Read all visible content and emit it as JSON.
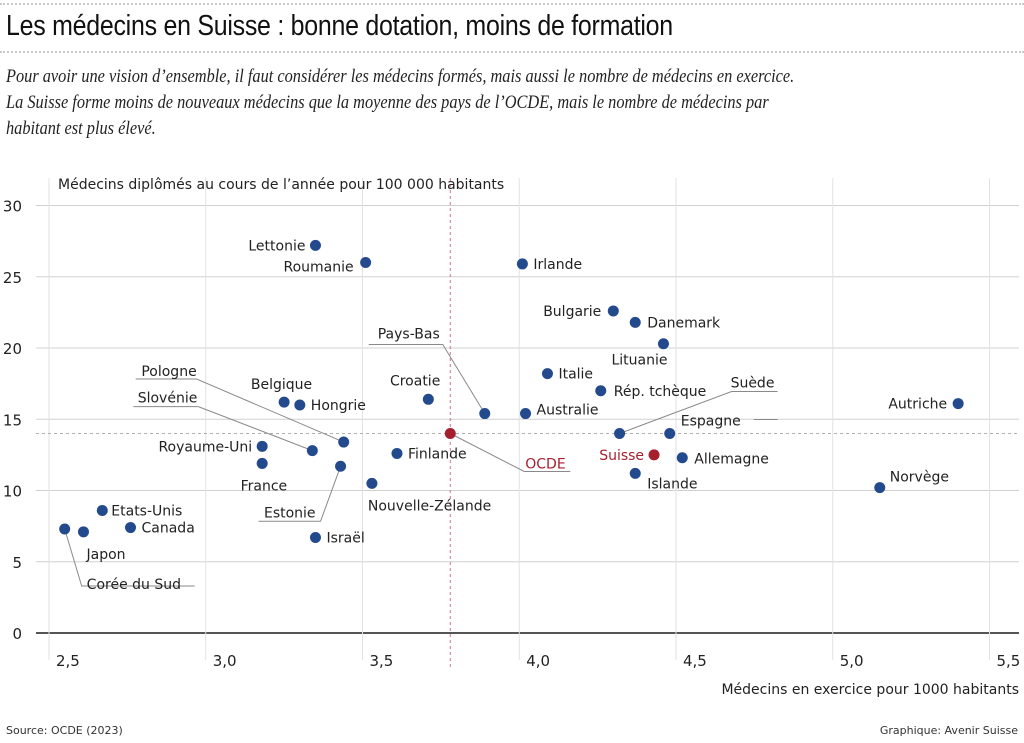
{
  "header": {
    "title": "Les médecins en Suisse : bonne dotation, moins de formation",
    "subtitle_lines": [
      "Pour avoir une vision d’ensemble, il faut considérer les médecins formés, mais aussi le nombre de médecins en exercice.",
      "La Suisse forme moins de nouveaux médecins que la moyenne des pays de l’OCDE, mais le nombre de médecins par",
      "habitant est plus élevé."
    ]
  },
  "footer": {
    "source": "Source: OCDE (2023)",
    "credit": "Graphique: Avenir Suisse"
  },
  "colors": {
    "point": "#234a8c",
    "highlight": "#a51f2f",
    "grid": "#d0d0d0",
    "axis": "#555555",
    "leader": "#8a8a8a"
  },
  "chart_data": {
    "type": "scatter",
    "title": "Les médecins en Suisse : bonne dotation, moins de formation",
    "xlabel": "Médecins en exercice pour 1000 habitants",
    "ylabel": "Médecins diplômés au cours de l’année pour 100 000 habitants",
    "xlim": [
      2.45,
      5.6
    ],
    "ylim": [
      0,
      30
    ],
    "xticks": [
      2.5,
      3.0,
      3.5,
      4.0,
      4.5,
      5.0,
      5.5
    ],
    "xtick_labels": [
      "2,5",
      "3,0",
      "3,5",
      "4,0",
      "4,5",
      "5,0",
      "5,5"
    ],
    "yticks": [
      0,
      5,
      10,
      15,
      20,
      25,
      30
    ],
    "ytick_labels": [
      "0",
      "5",
      "10",
      "15",
      "20",
      "25",
      "30"
    ],
    "grid": true,
    "reference_lines": {
      "x": 3.78,
      "y": 14.0,
      "label": "OCDE"
    },
    "points": [
      {
        "name": "Corée du Sud",
        "x": 2.55,
        "y": 7.3,
        "highlight": false
      },
      {
        "name": "Japon",
        "x": 2.61,
        "y": 7.1,
        "highlight": false
      },
      {
        "name": "Etats-Unis",
        "x": 2.67,
        "y": 8.6,
        "highlight": false
      },
      {
        "name": "Canada",
        "x": 2.76,
        "y": 7.4,
        "highlight": false
      },
      {
        "name": "Royaume-Uni",
        "x": 3.18,
        "y": 13.1,
        "highlight": false
      },
      {
        "name": "France",
        "x": 3.18,
        "y": 11.9,
        "highlight": false
      },
      {
        "name": "Belgique",
        "x": 3.25,
        "y": 16.2,
        "highlight": false
      },
      {
        "name": "Hongrie",
        "x": 3.3,
        "y": 16.0,
        "highlight": false
      },
      {
        "name": "Slovénie",
        "x": 3.34,
        "y": 12.8,
        "highlight": false
      },
      {
        "name": "Pologne",
        "x": 3.44,
        "y": 13.4,
        "highlight": false
      },
      {
        "name": "Estonie",
        "x": 3.43,
        "y": 11.7,
        "highlight": false
      },
      {
        "name": "Israël",
        "x": 3.35,
        "y": 6.7,
        "highlight": false
      },
      {
        "name": "Lettonie",
        "x": 3.35,
        "y": 27.2,
        "highlight": false
      },
      {
        "name": "Roumanie",
        "x": 3.51,
        "y": 26.0,
        "highlight": false
      },
      {
        "name": "Nouvelle-Zélande",
        "x": 3.53,
        "y": 10.5,
        "highlight": false
      },
      {
        "name": "Finlande",
        "x": 3.61,
        "y": 12.6,
        "highlight": false
      },
      {
        "name": "Croatie",
        "x": 3.71,
        "y": 16.4,
        "highlight": false
      },
      {
        "name": "OCDE",
        "x": 3.78,
        "y": 14.0,
        "highlight": true
      },
      {
        "name": "Pays-Bas",
        "x": 3.89,
        "y": 15.4,
        "highlight": false
      },
      {
        "name": "Australie",
        "x": 4.02,
        "y": 15.4,
        "highlight": false
      },
      {
        "name": "Irlande",
        "x": 4.01,
        "y": 25.9,
        "highlight": false
      },
      {
        "name": "Italie",
        "x": 4.09,
        "y": 18.2,
        "highlight": false
      },
      {
        "name": "Rép. tchèque",
        "x": 4.26,
        "y": 17.0,
        "highlight": false
      },
      {
        "name": "Bulgarie",
        "x": 4.3,
        "y": 22.6,
        "highlight": false
      },
      {
        "name": "Danemark",
        "x": 4.37,
        "y": 21.8,
        "highlight": false
      },
      {
        "name": "Lituanie",
        "x": 4.46,
        "y": 20.3,
        "highlight": false
      },
      {
        "name": "Suède",
        "x": 4.32,
        "y": 14.0,
        "highlight": false
      },
      {
        "name": "Espagne",
        "x": 4.48,
        "y": 14.0,
        "highlight": false
      },
      {
        "name": "Suisse",
        "x": 4.43,
        "y": 12.5,
        "highlight": true
      },
      {
        "name": "Allemagne",
        "x": 4.52,
        "y": 12.3,
        "highlight": false
      },
      {
        "name": "Islande",
        "x": 4.37,
        "y": 11.2,
        "highlight": false
      },
      {
        "name": "Autriche",
        "x": 5.4,
        "y": 16.1,
        "highlight": false
      },
      {
        "name": "Norvège",
        "x": 5.15,
        "y": 10.2,
        "highlight": false
      }
    ]
  }
}
